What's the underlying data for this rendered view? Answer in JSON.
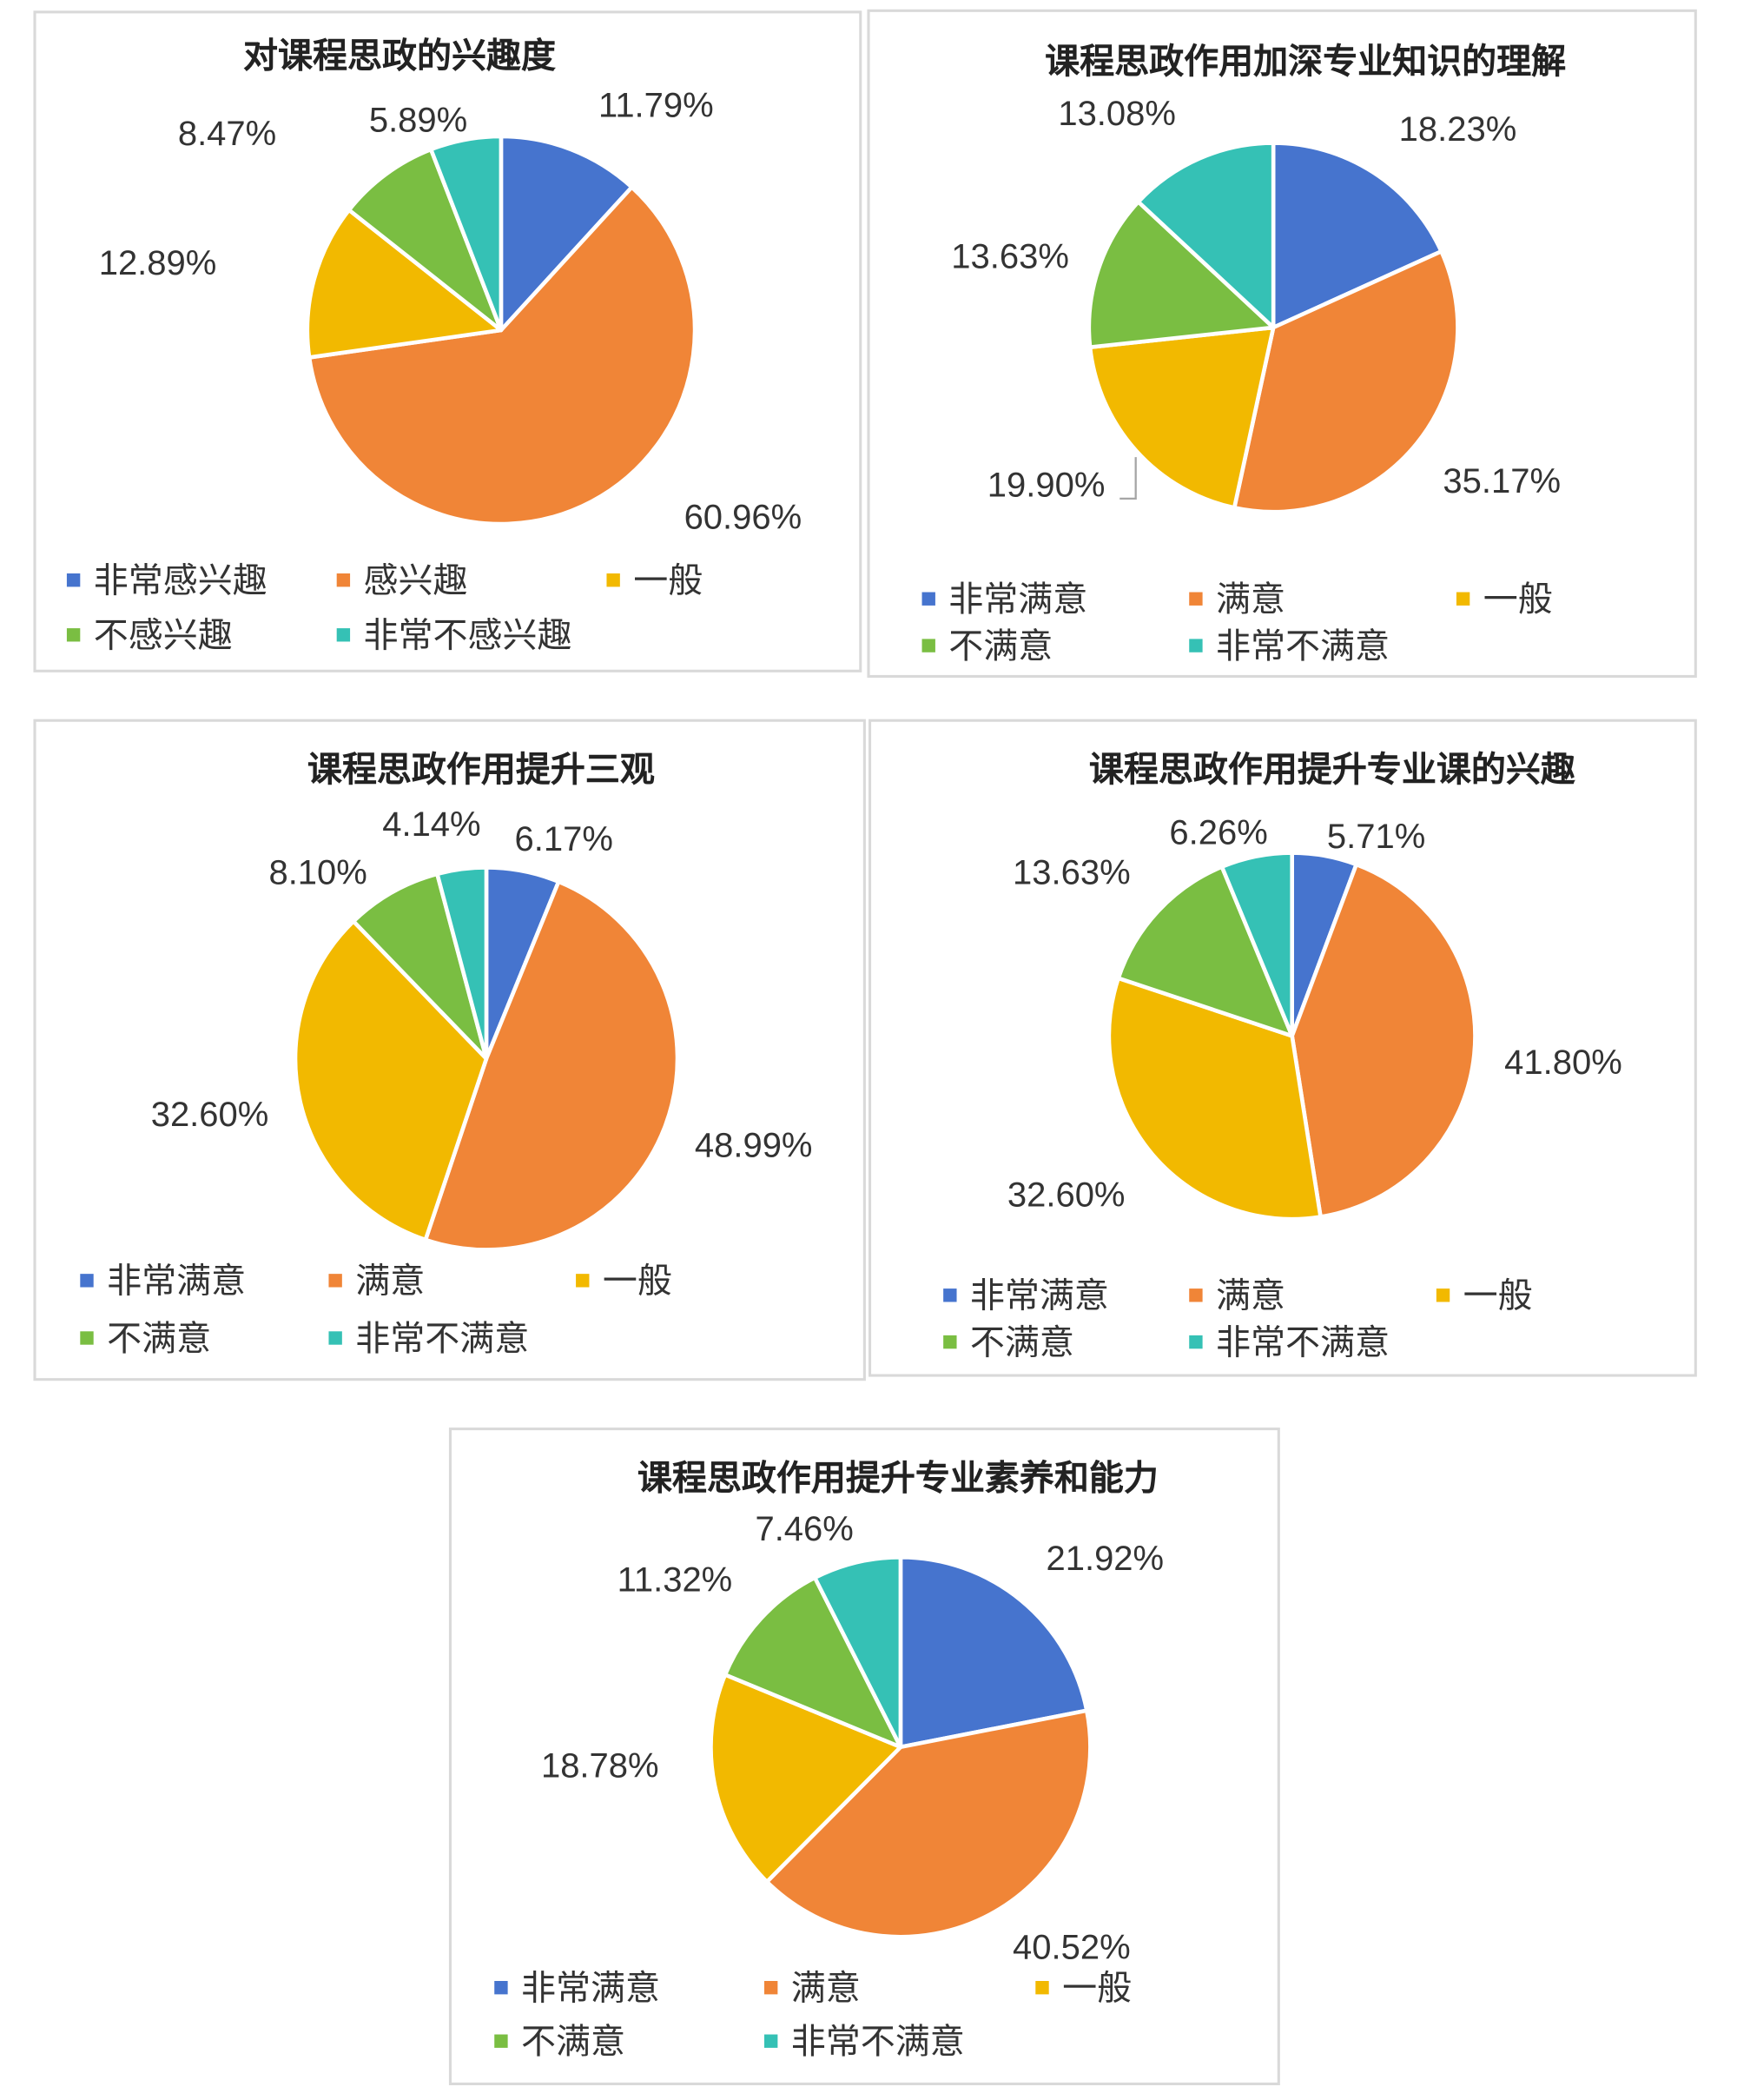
{
  "palette": [
    "#4674CE",
    "#F08537",
    "#F2B900",
    "#7ABE42",
    "#35C1B5"
  ],
  "chart_data": [
    {
      "type": "pie",
      "title": "对课程思政的兴趣度",
      "categories": [
        "非常感兴趣",
        "感兴趣",
        "一般",
        "不感兴趣",
        "非常不感兴趣"
      ],
      "values": [
        11.79,
        60.96,
        12.89,
        8.47,
        5.89
      ],
      "data_labels": [
        "11.79%",
        "60.96%",
        "12.89%",
        "8.47%",
        "5.89%"
      ],
      "legend": "bottom"
    },
    {
      "type": "pie",
      "title": "课程思政作用加深专业知识的理解",
      "categories": [
        "非常满意",
        "满意",
        "一般",
        "不满意",
        "非常不满意"
      ],
      "values": [
        18.23,
        35.17,
        19.9,
        13.63,
        13.08
      ],
      "data_labels": [
        "18.23%",
        "35.17%",
        "19.90%",
        "13.63%",
        "13.08%"
      ],
      "legend": "bottom"
    },
    {
      "type": "pie",
      "title": "课程思政作用提升三观",
      "categories": [
        "非常满意",
        "满意",
        "一般",
        "不满意",
        "非常不满意"
      ],
      "values": [
        6.17,
        48.99,
        32.6,
        8.1,
        4.14
      ],
      "data_labels": [
        "6.17%",
        "48.99%",
        "32.60%",
        "8.10%",
        "4.14%"
      ],
      "legend": "bottom"
    },
    {
      "type": "pie",
      "title": "课程思政作用提升专业课的兴趣",
      "categories": [
        "非常满意",
        "满意",
        "一般",
        "不满意",
        "非常不满意"
      ],
      "values": [
        5.71,
        41.8,
        32.6,
        13.63,
        6.26
      ],
      "data_labels": [
        "5.71%",
        "41.80%",
        "32.60%",
        "13.63%",
        "6.26%"
      ],
      "legend": "bottom"
    },
    {
      "type": "pie",
      "title": "课程思政作用提升专业素养和能力",
      "categories": [
        "非常满意",
        "满意",
        "一般",
        "不满意",
        "非常不满意"
      ],
      "values": [
        21.92,
        40.52,
        18.78,
        11.32,
        7.46
      ],
      "data_labels": [
        "21.92%",
        "40.52%",
        "18.78%",
        "11.32%",
        "7.46%"
      ],
      "legend": "bottom"
    }
  ]
}
